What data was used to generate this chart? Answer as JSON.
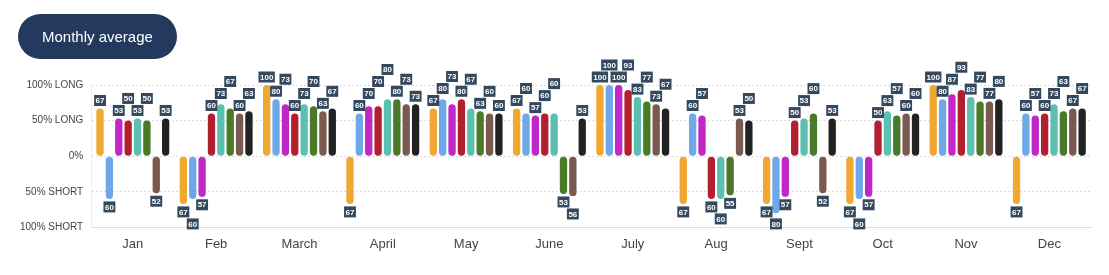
{
  "chart_data": {
    "type": "bar",
    "title": "Monthly average",
    "categories": [
      "Jan",
      "Feb",
      "March",
      "April",
      "May",
      "June",
      "July",
      "Aug",
      "Sept",
      "Oct",
      "Nov",
      "Dec"
    ],
    "ylim": [
      -100,
      100
    ],
    "yticks": [
      {
        "value": 100,
        "label": "100% LONG"
      },
      {
        "value": 50,
        "label": "50% LONG"
      },
      {
        "value": 0,
        "label": "0%"
      },
      {
        "value": -50,
        "label": "50% SHORT"
      },
      {
        "value": -100,
        "label": "100% SHORT"
      }
    ],
    "grid": "y",
    "legend": false,
    "data_labels": true,
    "series": [
      {
        "color": "#f0a830",
        "values": [
          67,
          67,
          100,
          67,
          67,
          67,
          100,
          67,
          67,
          67,
          100,
          67
        ],
        "base": [
          0,
          -67,
          0,
          -67,
          0,
          0,
          0,
          -67,
          -67,
          -67,
          0,
          -67
        ]
      },
      {
        "color": "#6fa8e8",
        "values": [
          60,
          60,
          80,
          60,
          80,
          60,
          100,
          60,
          80,
          60,
          80,
          60
        ],
        "base": [
          -60,
          -60,
          0,
          0,
          0,
          0,
          0,
          0,
          -80,
          -60,
          0,
          0
        ]
      },
      {
        "color": "#c026c8",
        "values": [
          53,
          57,
          73,
          70,
          73,
          57,
          100,
          57,
          57,
          57,
          87,
          57
        ],
        "base": [
          0,
          -57,
          0,
          0,
          0,
          0,
          0,
          0,
          -57,
          -57,
          0,
          0
        ]
      },
      {
        "color": "#b22030",
        "values": [
          50,
          60,
          60,
          70,
          80,
          60,
          93,
          60,
          50,
          50,
          93,
          60
        ],
        "base": [
          0,
          0,
          0,
          0,
          0,
          0,
          0,
          -60,
          0,
          0,
          0,
          0
        ]
      },
      {
        "color": "#5cc0b0",
        "values": [
          53,
          73,
          73,
          80,
          67,
          60,
          83,
          60,
          53,
          63,
          83,
          73
        ],
        "base": [
          0,
          0,
          0,
          0,
          0,
          0,
          0,
          -60,
          0,
          0,
          0,
          0
        ]
      },
      {
        "color": "#4a7a28",
        "values": [
          50,
          67,
          70,
          80,
          63,
          53,
          77,
          55,
          60,
          57,
          77,
          63
        ],
        "base": [
          0,
          0,
          0,
          0,
          0,
          -53,
          0,
          -55,
          0,
          0,
          0,
          0
        ]
      },
      {
        "color": "#7a5a50",
        "values": [
          52,
          60,
          63,
          73,
          60,
          56,
          73,
          53,
          52,
          60,
          77,
          67
        ],
        "base": [
          -52,
          0,
          0,
          0,
          0,
          -56,
          0,
          0,
          -52,
          0,
          0,
          0
        ]
      },
      {
        "color": "#222222",
        "values": [
          53,
          63,
          67,
          73,
          60,
          53,
          67,
          50,
          53,
          60,
          80,
          67
        ],
        "base": [
          0,
          0,
          0,
          0,
          0,
          0,
          0,
          0,
          0,
          0,
          0,
          0
        ]
      }
    ]
  }
}
